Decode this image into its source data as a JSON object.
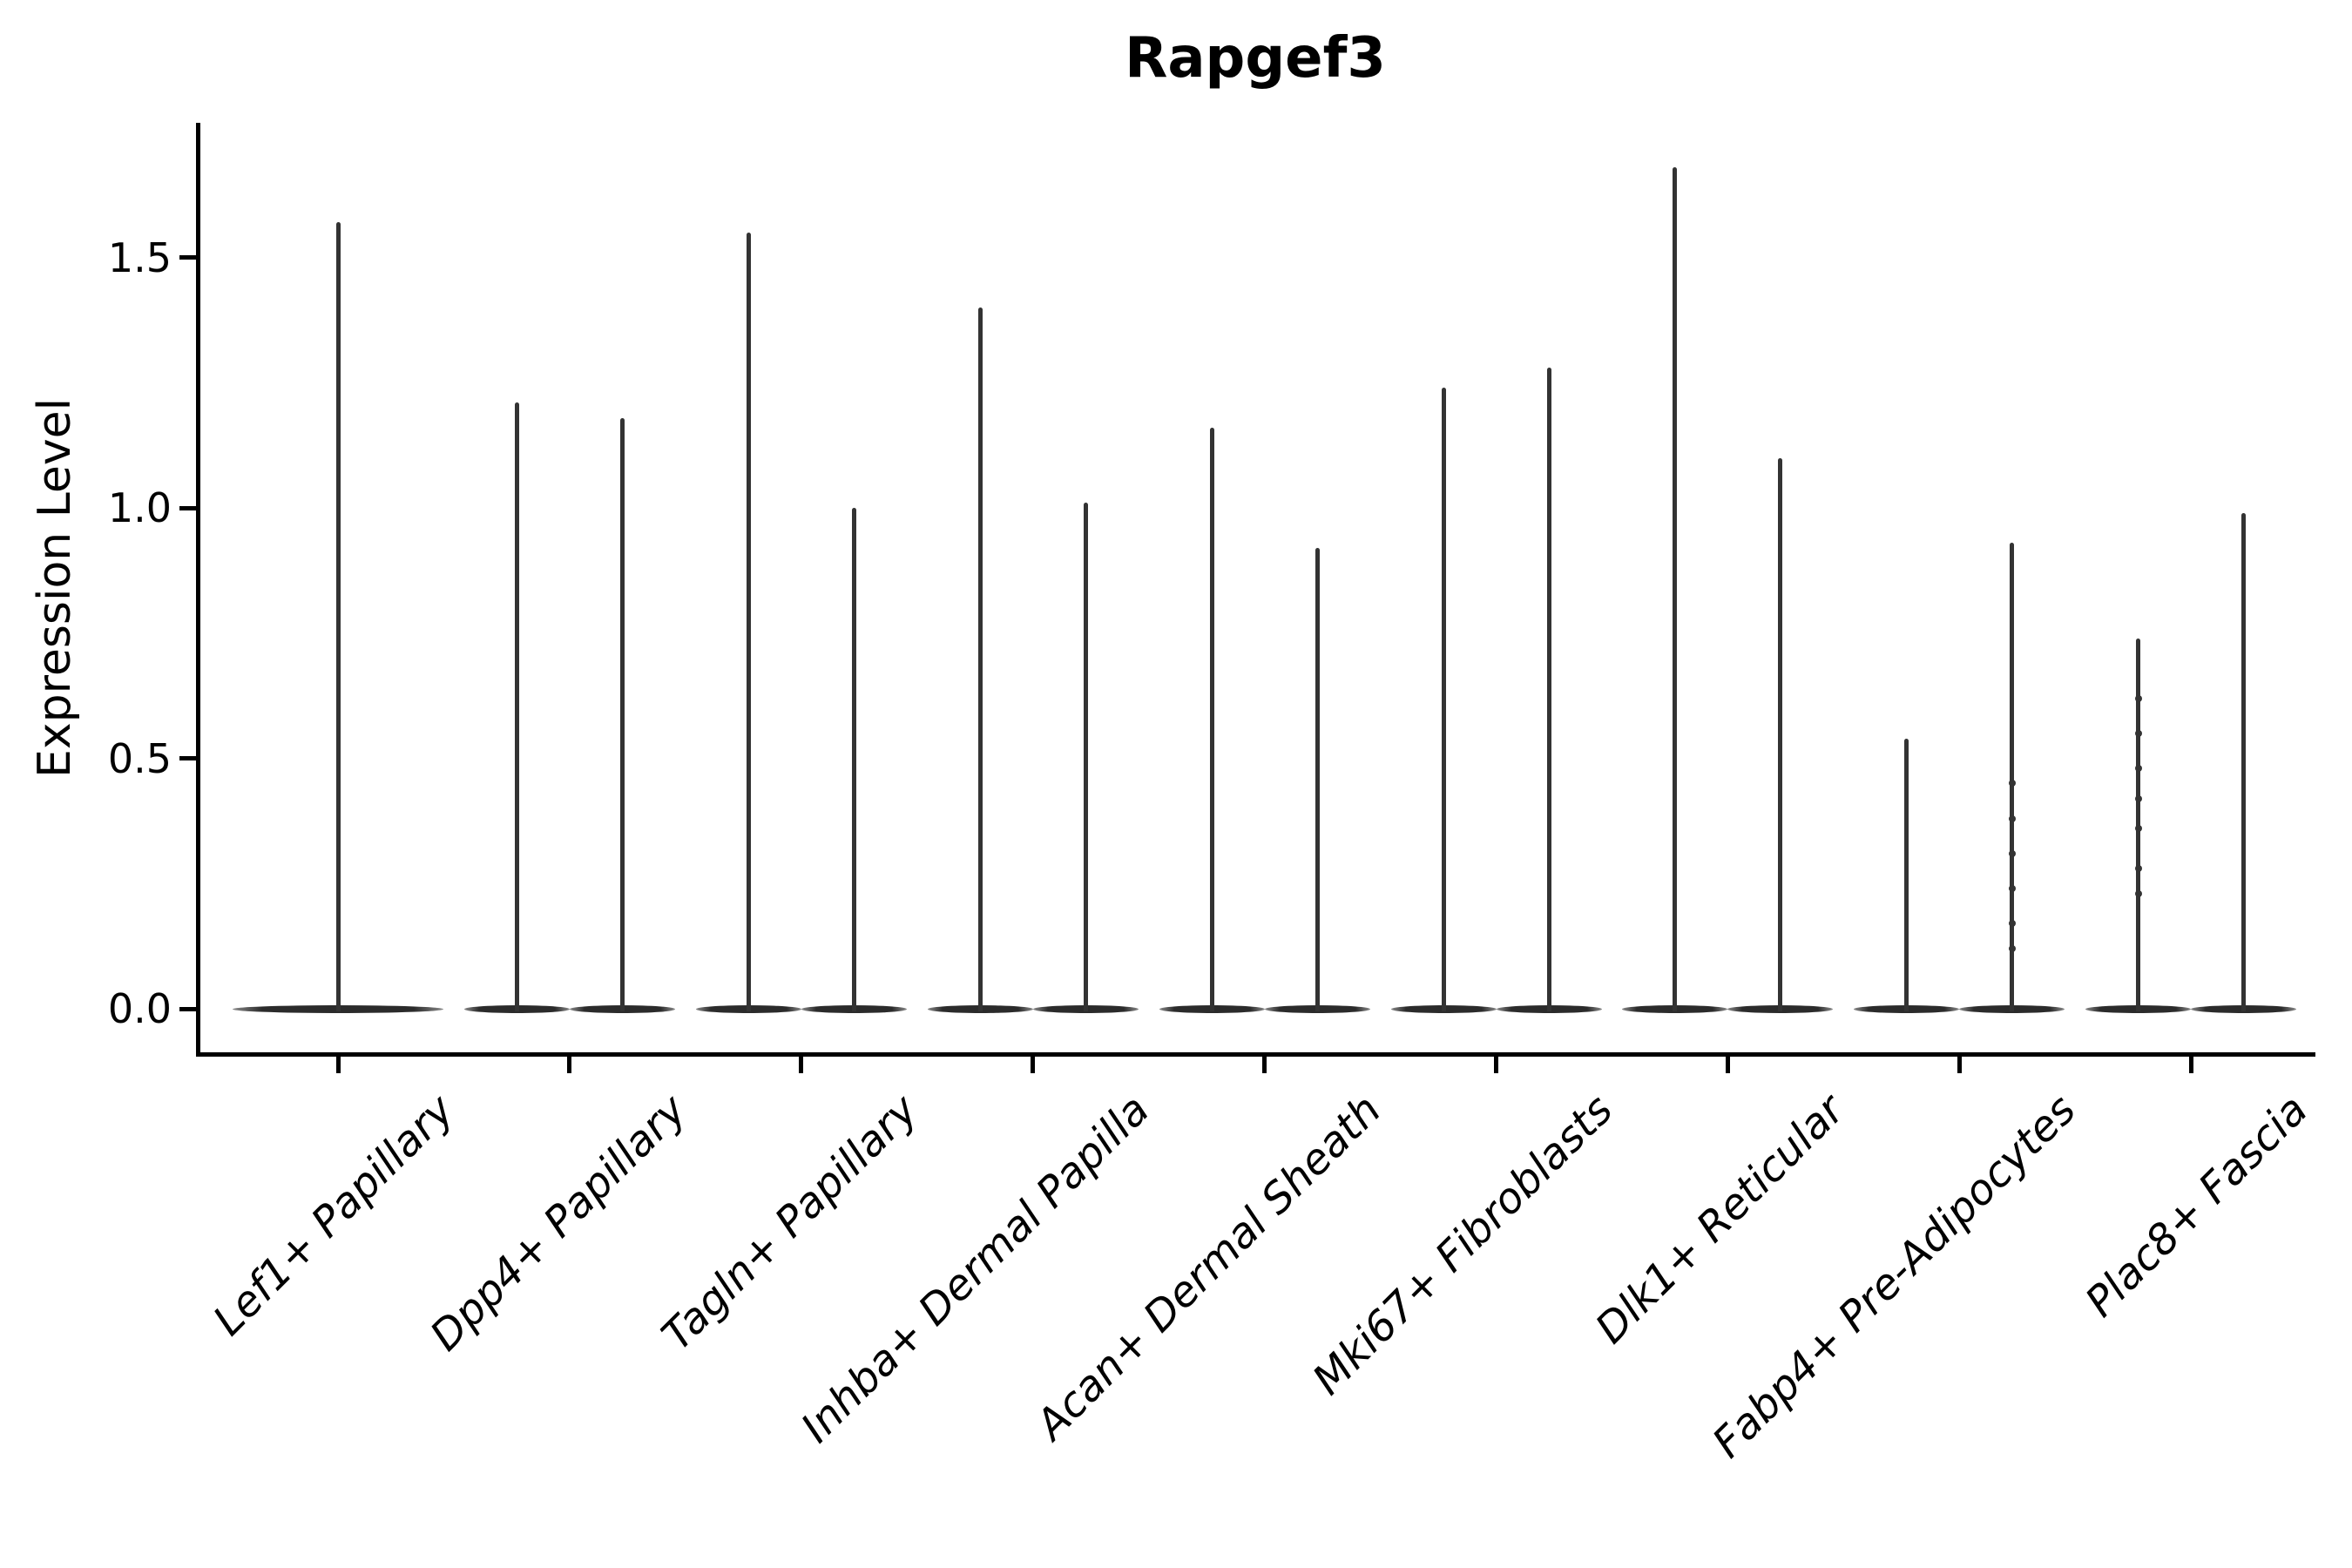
{
  "figure": {
    "title": "Rapgef3",
    "background_color": "#ffffff"
  },
  "y_axis": {
    "label": "Expression Level",
    "tick_labels": [
      "0.0",
      "0.5",
      "1.0",
      "1.5"
    ]
  },
  "chart_data": {
    "type": "violin",
    "title": "Rapgef3",
    "xlabel": "",
    "ylabel": "Expression Level",
    "ylim": [
      -0.09,
      1.77
    ],
    "yticks": [
      0.0,
      0.5,
      1.0,
      1.5
    ],
    "grid": false,
    "legend": "none",
    "violin_color": "#333333",
    "axis_color": "#000000",
    "style_note": "each violin is a flat high-density disc at expression 0 with a thin spike up to its maximum value",
    "categories": [
      {
        "label": "Lef1+ Papillary",
        "violins": [
          {
            "slot": "full",
            "max": 1.57
          }
        ]
      },
      {
        "label": "Dpp4+ Papillary",
        "violins": [
          {
            "slot": "left",
            "max": 1.21
          },
          {
            "slot": "right",
            "max": 1.18
          }
        ]
      },
      {
        "label": "Tagln+ Papillary",
        "violins": [
          {
            "slot": "left",
            "max": 1.55
          },
          {
            "slot": "right",
            "max": 1.0
          }
        ]
      },
      {
        "label": "Inhba+ Dermal Papilla",
        "violins": [
          {
            "slot": "left",
            "max": 1.4
          },
          {
            "slot": "right",
            "max": 1.01
          }
        ]
      },
      {
        "label": "Acan+ Dermal Sheath",
        "violins": [
          {
            "slot": "left",
            "max": 1.16
          },
          {
            "slot": "right",
            "max": 0.92
          }
        ]
      },
      {
        "label": "Mki67+ Fibroblasts",
        "violins": [
          {
            "slot": "left",
            "max": 1.24
          },
          {
            "slot": "right",
            "max": 1.28
          }
        ]
      },
      {
        "label": "Dlk1+ Reticular",
        "violins": [
          {
            "slot": "left",
            "max": 1.68
          },
          {
            "slot": "right",
            "max": 1.1
          }
        ]
      },
      {
        "label": "Fabp4+ Pre-Adipocytes",
        "violins": [
          {
            "slot": "left",
            "max": 0.54
          },
          {
            "slot": "right",
            "max": 0.93,
            "knots": [
              0.45,
              0.38,
              0.31,
              0.24,
              0.17,
              0.12
            ]
          }
        ]
      },
      {
        "label": "Plac8+ Fascia",
        "violins": [
          {
            "slot": "left",
            "max": 0.74,
            "knots": [
              0.62,
              0.55,
              0.48,
              0.42,
              0.36,
              0.28,
              0.23
            ]
          },
          {
            "slot": "right",
            "max": 0.99
          }
        ]
      }
    ]
  }
}
